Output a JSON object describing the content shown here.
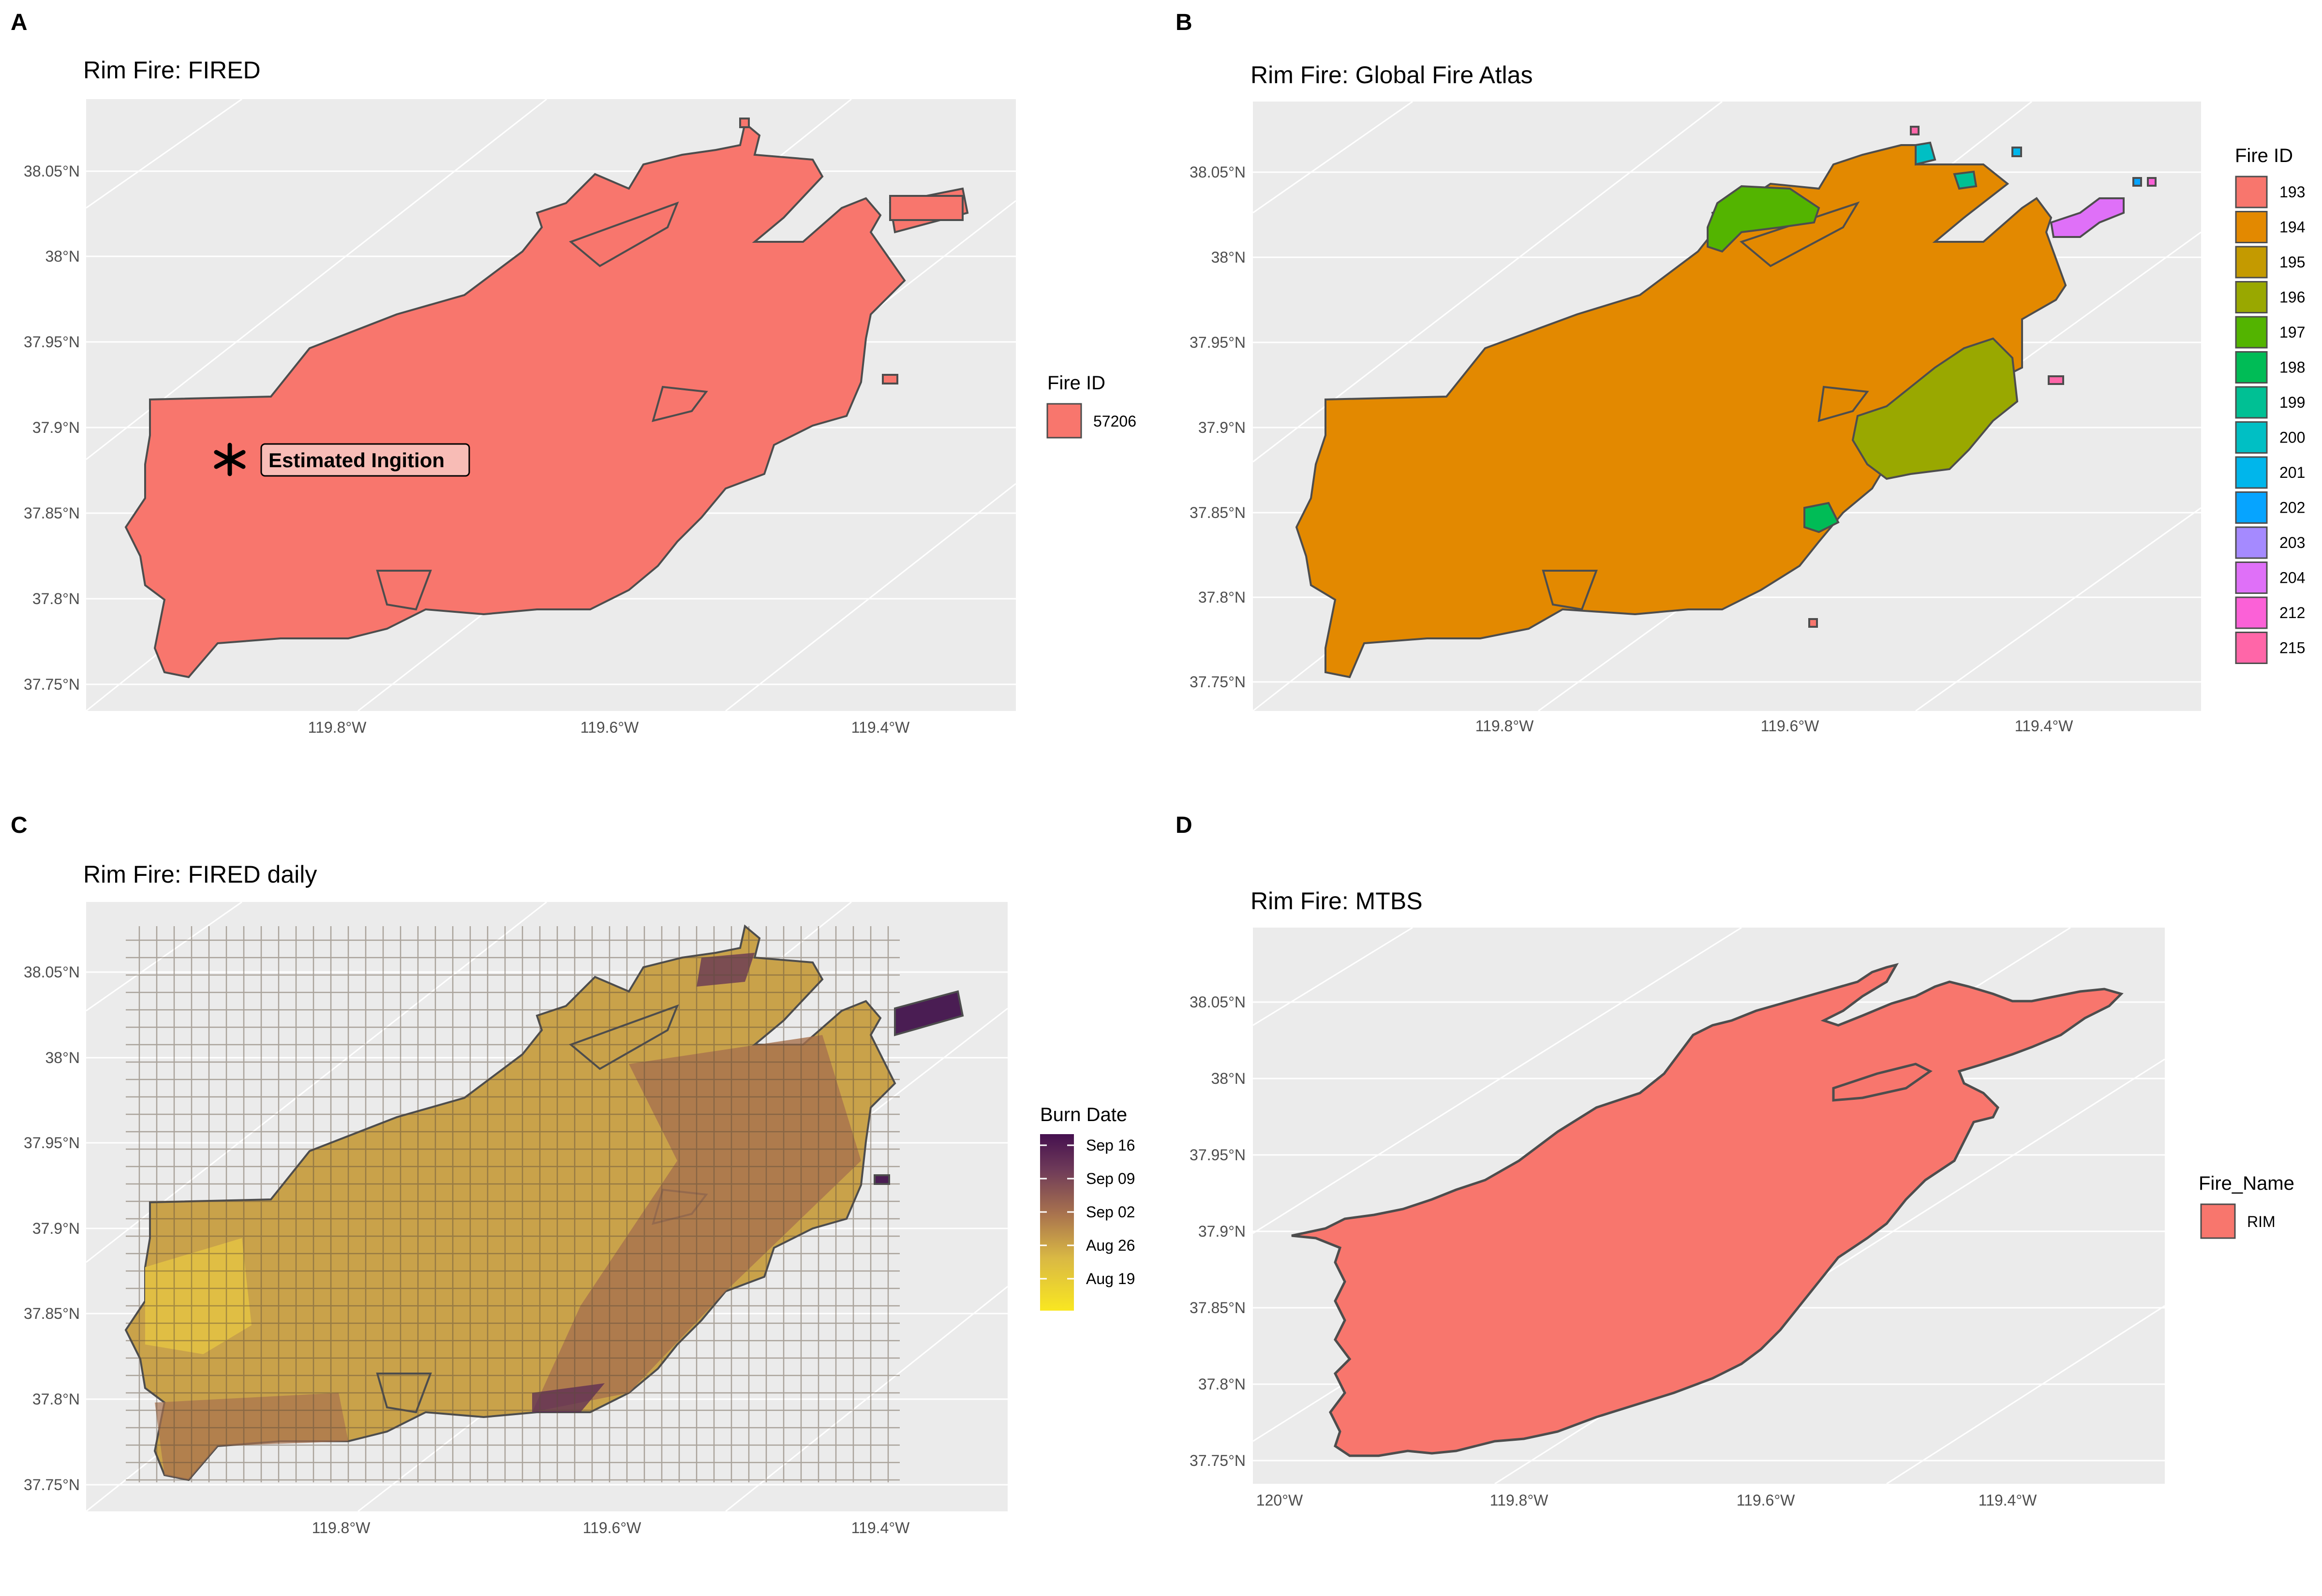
{
  "figure": {
    "panels": [
      {
        "letter": "A",
        "title": "Rim Fire: FIRED",
        "y_ticks": [
          "38.05°N",
          "38°N",
          "37.95°N",
          "37.9°N",
          "37.85°N",
          "37.8°N",
          "37.75°N"
        ],
        "x_ticks": [
          "119.8°W",
          "119.6°W",
          "119.4°W"
        ],
        "annotation": "Estimated Ingition",
        "legend": {
          "title": "Fire ID",
          "items": [
            {
              "label": "57206",
              "color": "#F8766D"
            }
          ]
        }
      },
      {
        "letter": "B",
        "title": "Rim Fire: Global Fire Atlas",
        "y_ticks": [
          "38.05°N",
          "38°N",
          "37.95°N",
          "37.9°N",
          "37.85°N",
          "37.8°N",
          "37.75°N"
        ],
        "x_ticks": [
          "119.8°W",
          "119.6°W",
          "119.4°W"
        ],
        "legend": {
          "title": "Fire ID",
          "items": [
            {
              "label": "193",
              "color": "#F8766D"
            },
            {
              "label": "194",
              "color": "#E38900"
            },
            {
              "label": "195",
              "color": "#C49A00"
            },
            {
              "label": "196",
              "color": "#99A800"
            },
            {
              "label": "197",
              "color": "#53B400"
            },
            {
              "label": "198",
              "color": "#00BC56"
            },
            {
              "label": "199",
              "color": "#00C094"
            },
            {
              "label": "200",
              "color": "#00BFC4"
            },
            {
              "label": "201",
              "color": "#00B6EB"
            },
            {
              "label": "202",
              "color": "#06A4FF"
            },
            {
              "label": "203",
              "color": "#A58AFF"
            },
            {
              "label": "204",
              "color": "#DF70F8"
            },
            {
              "label": "212",
              "color": "#FB61D7"
            },
            {
              "label": "215",
              "color": "#FF66A8"
            }
          ]
        }
      },
      {
        "letter": "C",
        "title": "Rim Fire: FIRED daily",
        "y_ticks": [
          "38.05°N",
          "38°N",
          "37.95°N",
          "37.9°N",
          "37.85°N",
          "37.8°N",
          "37.75°N"
        ],
        "x_ticks": [
          "119.8°W",
          "119.6°W",
          "119.4°W"
        ],
        "legend": {
          "title": "Burn Date",
          "labels": [
            "Sep 16",
            "Sep 09",
            "Sep 02",
            "Aug 26",
            "Aug 19"
          ]
        }
      },
      {
        "letter": "D",
        "title": "Rim Fire: MTBS",
        "y_ticks": [
          "38.05°N",
          "38°N",
          "37.95°N",
          "37.9°N",
          "37.85°N",
          "37.8°N",
          "37.75°N"
        ],
        "x_ticks": [
          "120°W",
          "119.8°W",
          "119.6°W",
          "119.4°W"
        ],
        "legend": {
          "title": "Fire_Name",
          "items": [
            {
              "label": "RIM",
              "color": "#F8766D"
            }
          ]
        }
      }
    ]
  },
  "colors": {
    "panel_bg": "#EBEBEB",
    "grid": "#FFFFFF",
    "outline": "#4D4D4D",
    "fired_fill": "#F8766D",
    "gfa_main": "#E38900",
    "burn_early": "#D9B844",
    "burn_mid": "#A8724E",
    "burn_late": "#4A1D53"
  }
}
